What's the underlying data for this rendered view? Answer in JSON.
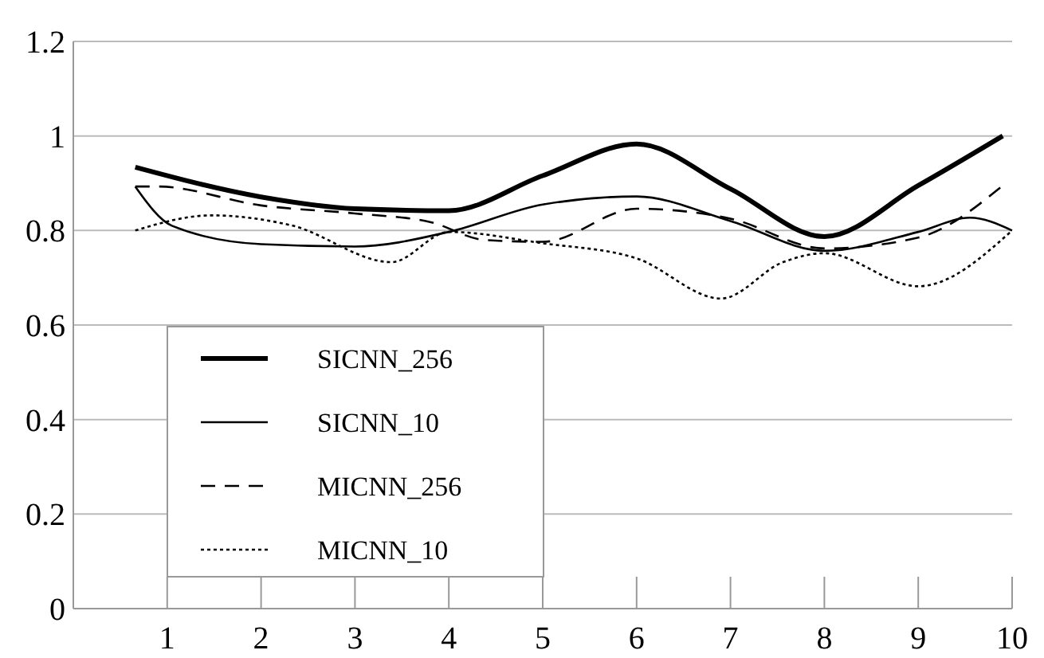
{
  "chart_data": {
    "type": "line",
    "xlim": [
      0,
      10
    ],
    "xticks": [
      1,
      2,
      3,
      4,
      5,
      6,
      7,
      8,
      9,
      10
    ],
    "ylim": [
      0,
      1.2
    ],
    "yticks": [
      0,
      0.2,
      0.4,
      0.6,
      0.8,
      1,
      1.2
    ],
    "grid": "y",
    "legend": "bottom left",
    "series": [
      {
        "name": "SICNN_256",
        "color": "#000000",
        "line_style": "solid",
        "x": [
          0.66,
          2,
          3,
          4,
          5,
          6,
          7,
          8,
          9,
          9.9
        ],
        "values": [
          0.934,
          0.871,
          0.846,
          0.842,
          0.916,
          0.983,
          0.888,
          0.787,
          0.895,
          1.0
        ]
      },
      {
        "name": "SICNN_10",
        "color": "#000000",
        "line_style": "solid",
        "x": [
          0.66,
          1.05,
          2,
          3,
          4,
          5,
          6,
          7,
          8,
          9,
          9.55,
          10
        ],
        "values": [
          0.893,
          0.81,
          0.771,
          0.766,
          0.797,
          0.855,
          0.872,
          0.82,
          0.757,
          0.797,
          0.827,
          0.8
        ]
      },
      {
        "name": "MICNN_256",
        "color": "#000000",
        "line_style": "dashed",
        "x": [
          0.66,
          0.9,
          2,
          3,
          3.8,
          4.38,
          5,
          6,
          7,
          8,
          9,
          9.9
        ],
        "values": [
          0.893,
          0.893,
          0.853,
          0.836,
          0.818,
          0.78,
          0.776,
          0.846,
          0.825,
          0.762,
          0.785,
          0.895
        ]
      },
      {
        "name": "MICNN_10",
        "color": "#000000",
        "line_style": "dotted",
        "x": [
          0.66,
          1.47,
          2.32,
          3.39,
          4,
          5,
          6,
          6.9,
          7.56,
          8,
          9,
          10
        ],
        "values": [
          0.8,
          0.832,
          0.811,
          0.733,
          0.797,
          0.773,
          0.741,
          0.656,
          0.733,
          0.752,
          0.682,
          0.8
        ]
      }
    ]
  }
}
